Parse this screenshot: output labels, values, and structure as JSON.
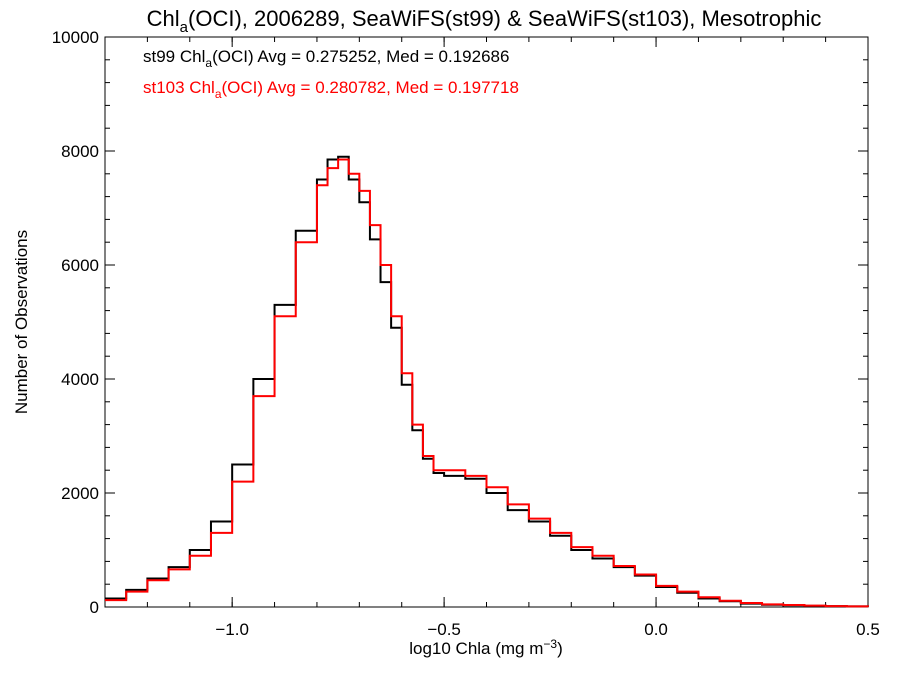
{
  "chart_data": {
    "type": "line",
    "style": "step histogram",
    "title": {
      "prefix": "Chl",
      "sub": "a",
      "suffix": "(OCI), 2006289, SeaWiFS(st99) & SeaWiFS(st103), Mesotrophic"
    },
    "xlabel": {
      "main": "log10 Chla (mg m",
      "sup": "−3",
      "close": ")"
    },
    "ylabel": "Number of Observations",
    "xlim": [
      -1.3,
      0.5
    ],
    "ylim": [
      0,
      10000
    ],
    "xticks": [
      {
        "value": -1.0,
        "label": "−1.0"
      },
      {
        "value": -0.5,
        "label": "−0.5"
      },
      {
        "value": 0.0,
        "label": "0.0"
      },
      {
        "value": 0.5,
        "label": "0.5"
      }
    ],
    "yticks": [
      {
        "value": 0,
        "label": "0"
      },
      {
        "value": 2000,
        "label": "2000"
      },
      {
        "value": 4000,
        "label": "4000"
      },
      {
        "value": 6000,
        "label": "6000"
      },
      {
        "value": 8000,
        "label": "8000"
      },
      {
        "value": 10000,
        "label": "10000"
      }
    ],
    "grid": false,
    "legend_position": "top-left",
    "x": [
      -1.3,
      -1.25,
      -1.2,
      -1.15,
      -1.1,
      -1.05,
      -1.0,
      -0.95,
      -0.9,
      -0.85,
      -0.8,
      -0.775,
      -0.75,
      -0.725,
      -0.7,
      -0.675,
      -0.65,
      -0.625,
      -0.6,
      -0.575,
      -0.55,
      -0.525,
      -0.5,
      -0.45,
      -0.4,
      -0.35,
      -0.3,
      -0.25,
      -0.2,
      -0.15,
      -0.1,
      -0.05,
      0.0,
      0.05,
      0.1,
      0.15,
      0.2,
      0.25,
      0.3,
      0.35,
      0.4,
      0.45,
      0.5
    ],
    "series": [
      {
        "name": "st99",
        "color": "#000000",
        "values": [
          150,
          300,
          500,
          700,
          1000,
          1500,
          2500,
          4000,
          5300,
          6600,
          7500,
          7850,
          7900,
          7500,
          7100,
          6450,
          5700,
          4900,
          3900,
          3100,
          2600,
          2350,
          2300,
          2250,
          2000,
          1700,
          1500,
          1250,
          1000,
          850,
          700,
          550,
          350,
          250,
          150,
          100,
          60,
          40,
          30,
          20,
          15,
          10,
          5
        ]
      },
      {
        "name": "st103",
        "color": "#ff0000",
        "values": [
          120,
          270,
          470,
          660,
          900,
          1300,
          2200,
          3700,
          5100,
          6400,
          7400,
          7700,
          7850,
          7600,
          7300,
          6700,
          6000,
          5100,
          4100,
          3200,
          2650,
          2400,
          2400,
          2300,
          2100,
          1800,
          1550,
          1300,
          1050,
          900,
          720,
          570,
          370,
          270,
          170,
          110,
          70,
          45,
          35,
          25,
          15,
          10,
          5
        ]
      }
    ],
    "legend": [
      {
        "series": "st99",
        "prefix": "st99 Chl",
        "sub": "a",
        "suffix": "(OCI) Avg = 0.275252, Med = 0.192686"
      },
      {
        "series": "st103",
        "prefix": "st103 Chl",
        "sub": "a",
        "suffix": "(OCI) Avg = 0.280782, Med = 0.197718"
      }
    ]
  }
}
